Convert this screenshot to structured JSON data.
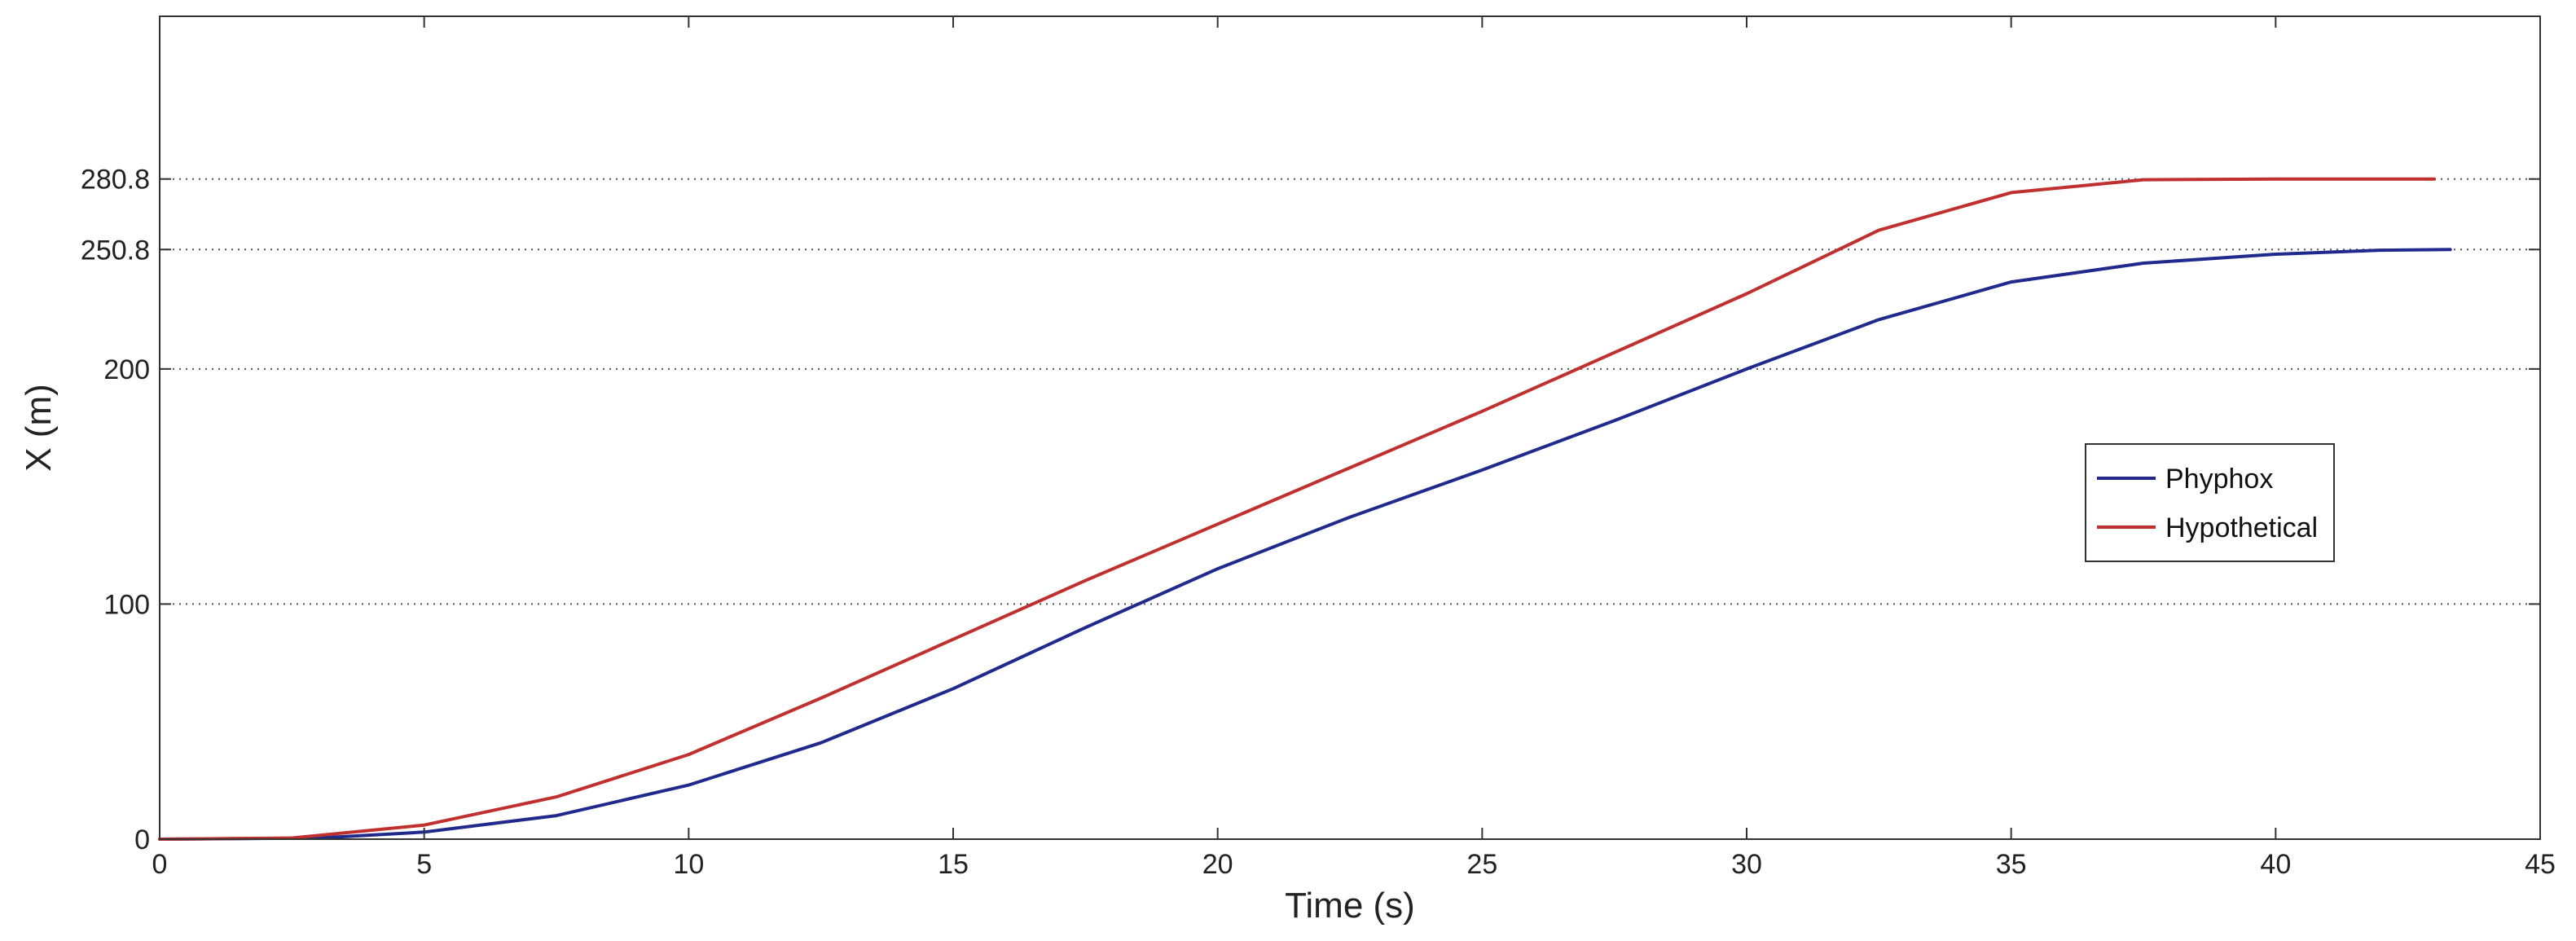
{
  "chart_data": {
    "type": "line",
    "title": "",
    "xlabel": "Time (s)",
    "ylabel": "X (m)",
    "xlim": [
      0,
      45
    ],
    "ylim": [
      0,
      350
    ],
    "xticks": [
      0,
      5,
      10,
      15,
      20,
      25,
      30,
      35,
      40,
      45
    ],
    "yticks": [
      0,
      100,
      200,
      250.8,
      280.8
    ],
    "ytick_labels": [
      "0",
      "100",
      "200",
      "250.8",
      "280.8"
    ],
    "grid": "horizontal-dotted",
    "legend_position": "right",
    "series": [
      {
        "name": "Phyphox",
        "color": "#1f2a8c",
        "x": [
          0,
          3,
          5,
          7.5,
          10,
          12.5,
          15,
          17.5,
          20,
          22.5,
          25,
          27.5,
          30,
          32.5,
          35,
          37.5,
          40,
          42,
          43.3
        ],
        "y": [
          0,
          0.5,
          3,
          10,
          23,
          41,
          64,
          90,
          115,
          137,
          157,
          178,
          200,
          221,
          237,
          245,
          248.8,
          250.5,
          250.8
        ]
      },
      {
        "name": "Hypothetical",
        "color": "#c0302e",
        "x": [
          0,
          2.5,
          5,
          7.5,
          10,
          12.5,
          15,
          17.5,
          20,
          22.5,
          25,
          27.5,
          30,
          32.5,
          35,
          37.5,
          40,
          43
        ],
        "y": [
          0,
          0.5,
          6,
          18,
          36,
          60,
          85,
          110,
          134,
          158,
          182,
          207,
          232,
          259,
          275,
          280.5,
          280.8,
          280.8
        ]
      }
    ]
  }
}
